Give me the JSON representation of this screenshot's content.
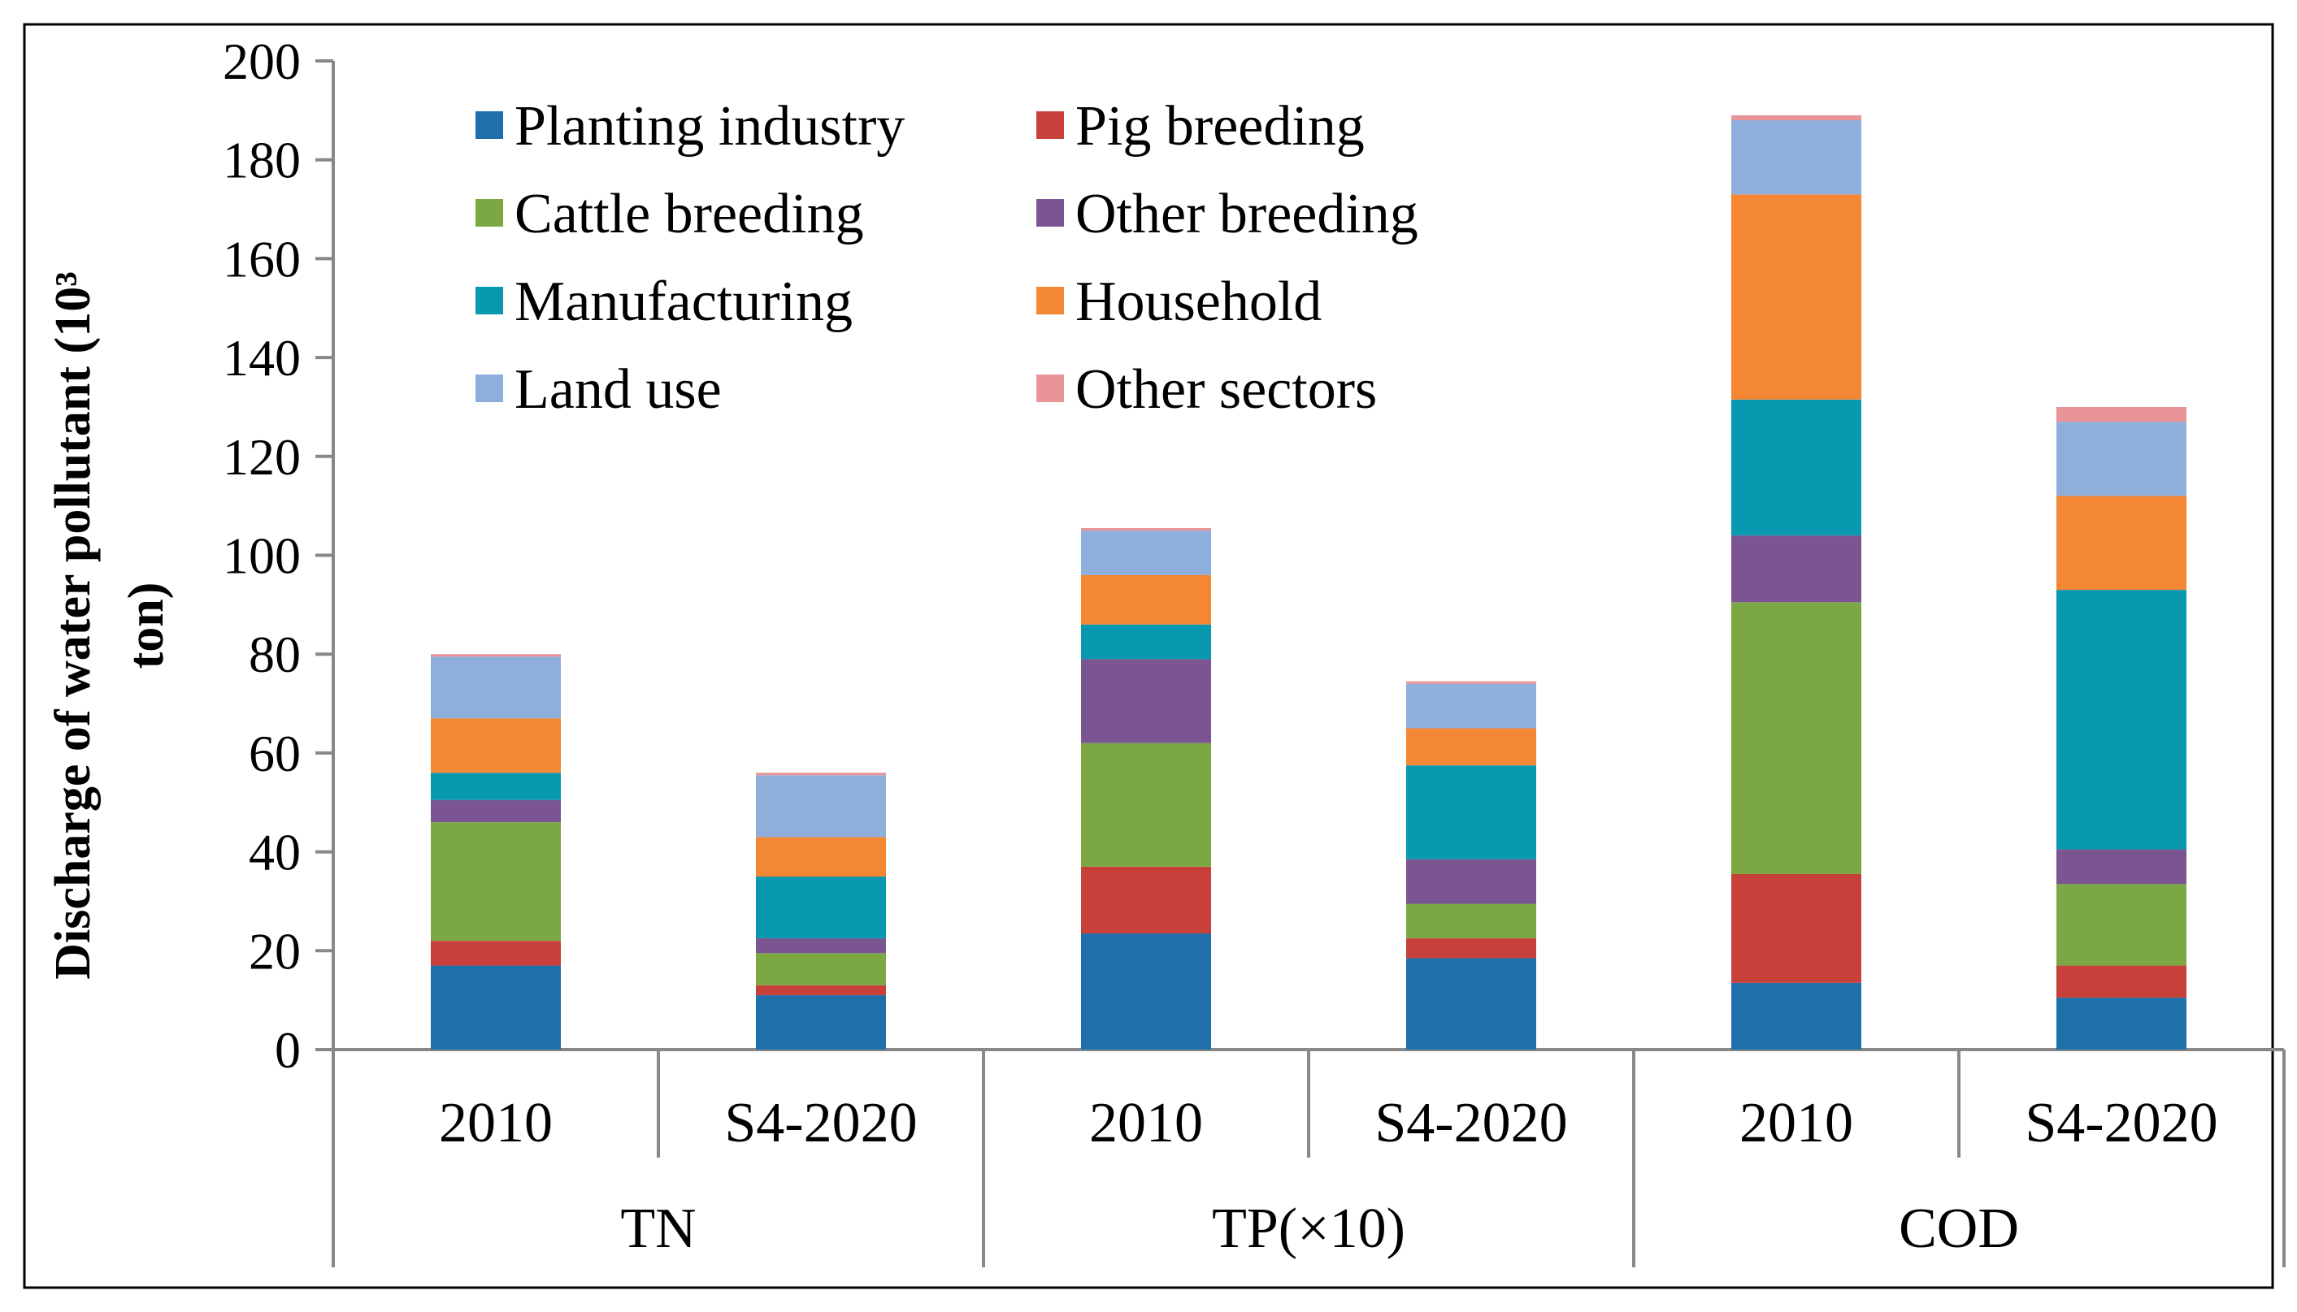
{
  "chart_data": {
    "type": "bar",
    "stacked": true,
    "title": "",
    "ylabel_line1": "Discharge of water pollutant (10³",
    "ylabel_line2": "ton)",
    "ylim": [
      0,
      200
    ],
    "yticks": [
      "0",
      "20",
      "40",
      "60",
      "80",
      "100",
      "120",
      "140",
      "160",
      "180",
      "200"
    ],
    "legend_position": "top-left inside",
    "categories": [
      "2010",
      "S4-2020",
      "2010",
      "S4-2020",
      "2010",
      "S4-2020"
    ],
    "groups": [
      {
        "label": "TN",
        "categories": [
          "2010",
          "S4-2020"
        ]
      },
      {
        "label": "TP(×10)",
        "categories": [
          "2010",
          "S4-2020"
        ]
      },
      {
        "label": "COD",
        "categories": [
          "2010",
          "S4-2020"
        ]
      }
    ],
    "series": [
      {
        "name": "Planting industry",
        "color": "#1F6FAB",
        "values": [
          17,
          11,
          23.5,
          18.5,
          13.5,
          10.5
        ]
      },
      {
        "name": "Pig breeding",
        "color": "#C8403A",
        "values": [
          5,
          2,
          13.5,
          4,
          22,
          6.5
        ]
      },
      {
        "name": "Cattle breeding",
        "color": "#7CA844",
        "values": [
          24,
          6.5,
          25,
          7,
          55,
          16.5
        ]
      },
      {
        "name": "Other breeding",
        "color": "#7B5592",
        "values": [
          4.5,
          3,
          17,
          9,
          13.5,
          7
        ]
      },
      {
        "name": "Manufacturing",
        "color": "#0899B0",
        "values": [
          5.5,
          12.5,
          7,
          19,
          27.5,
          52.5
        ]
      },
      {
        "name": "Household",
        "color": "#F38733",
        "values": [
          11,
          8,
          10,
          7.5,
          41.5,
          19
        ]
      },
      {
        "name": "Land use",
        "color": "#8EAEDB",
        "values": [
          12.5,
          12.5,
          9,
          9,
          15,
          15
        ]
      },
      {
        "name": "Other sectors",
        "color": "#E99497",
        "values": [
          0.5,
          0.5,
          0.5,
          0.5,
          1,
          3
        ]
      }
    ]
  }
}
